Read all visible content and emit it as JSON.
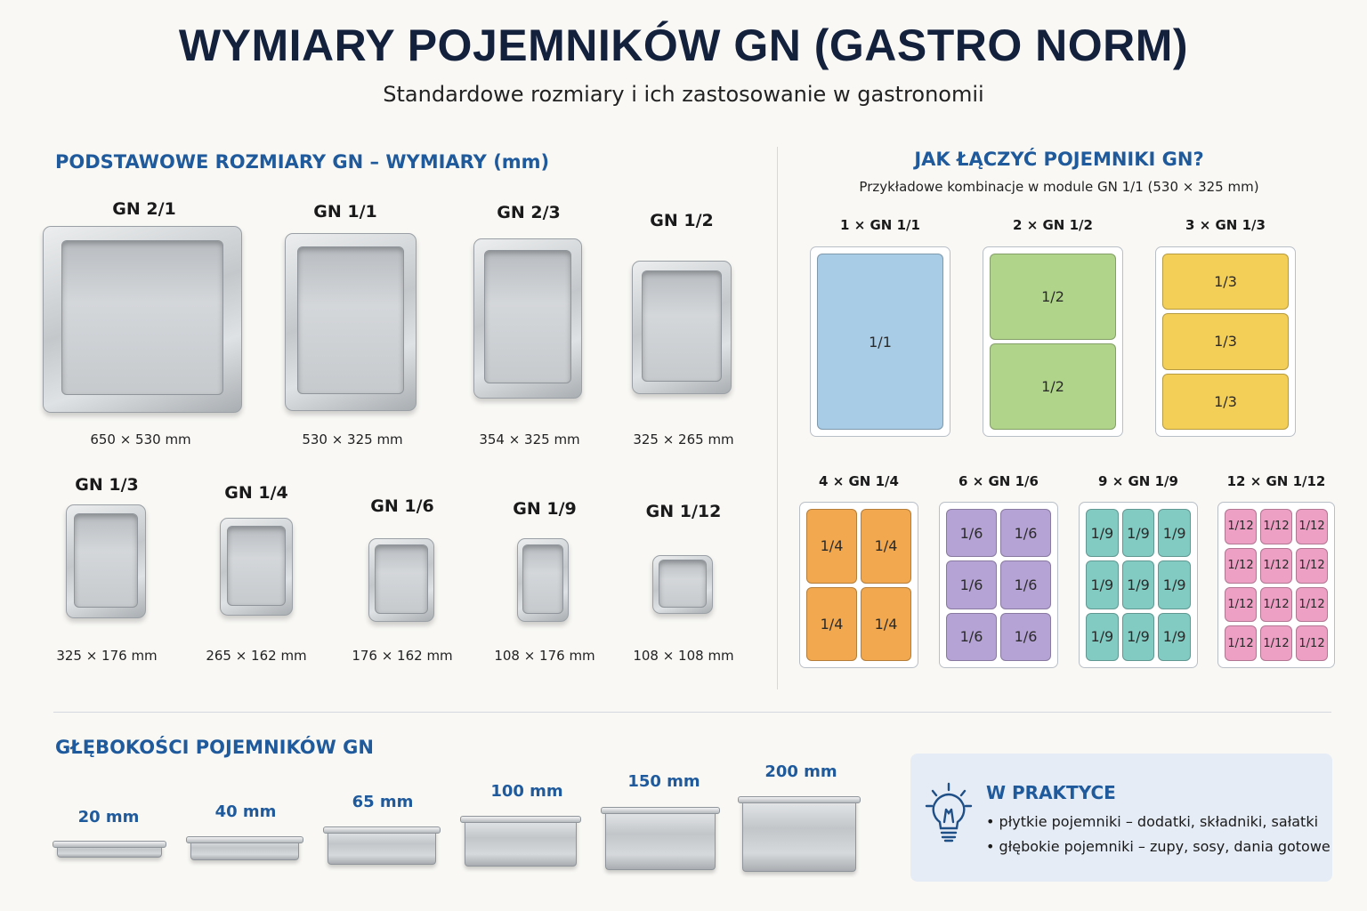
{
  "header": {
    "title": "WYMIARY POJEMNIKÓW GN (GASTRO NORM)",
    "subtitle": "Standardowe rozmiary i ich zastosowanie w gastronomii"
  },
  "sizes_section": {
    "heading": "PODSTAWOWE ROZMIARY GN – WYMIARY (mm)",
    "pans": [
      {
        "name": "GN 2/1",
        "dims": "650 × 530 mm"
      },
      {
        "name": "GN 1/1",
        "dims": "530 × 325 mm"
      },
      {
        "name": "GN 2/3",
        "dims": "354 × 325 mm"
      },
      {
        "name": "GN 1/2",
        "dims": "325 × 265 mm"
      },
      {
        "name": "GN 1/3",
        "dims": "325 × 176 mm"
      },
      {
        "name": "GN 1/4",
        "dims": "265 × 162 mm"
      },
      {
        "name": "GN 1/6",
        "dims": "176 × 162 mm"
      },
      {
        "name": "GN 1/9",
        "dims": "108 × 176 mm"
      },
      {
        "name": "GN 1/12",
        "dims": "108 × 108 mm"
      }
    ]
  },
  "combine_section": {
    "heading": "JAK ŁĄCZYĆ POJEMNIKI GN?",
    "subheading": "Przykładowe kombinacje w module GN 1/1 (530 × 325 mm)",
    "combos": [
      {
        "label": "1 × GN 1/1",
        "cell": "1/1",
        "count": 1,
        "color": "#a8cbe6"
      },
      {
        "label": "2 × GN 1/2",
        "cell": "1/2",
        "count": 2,
        "color": "#b0d48a"
      },
      {
        "label": "3 × GN 1/3",
        "cell": "1/3",
        "count": 3,
        "color": "#f4cf57"
      },
      {
        "label": "4 × GN 1/4",
        "cell": "1/4",
        "count": 4,
        "color": "#f2a84e"
      },
      {
        "label": "6 × GN 1/6",
        "cell": "1/6",
        "count": 6,
        "color": "#b6a3d6"
      },
      {
        "label": "9 × GN 1/9",
        "cell": "1/9",
        "count": 9,
        "color": "#82cbc3"
      },
      {
        "label": "12 × GN 1/12",
        "cell": "1/12",
        "count": 12,
        "color": "#ee9fc4"
      }
    ]
  },
  "depth_section": {
    "heading": "GŁĘBOKOŚCI POJEMNIKÓW GN",
    "depths": [
      "20 mm",
      "40 mm",
      "65 mm",
      "100 mm",
      "150 mm",
      "200 mm"
    ]
  },
  "tip": {
    "icon": "lightbulb-icon",
    "title": "W PRAKTYCE",
    "items": [
      "płytkie pojemniki – dodatki, składniki, sałatki",
      "głębokie pojemniki – zupy, sosy, dania gotowe"
    ]
  }
}
